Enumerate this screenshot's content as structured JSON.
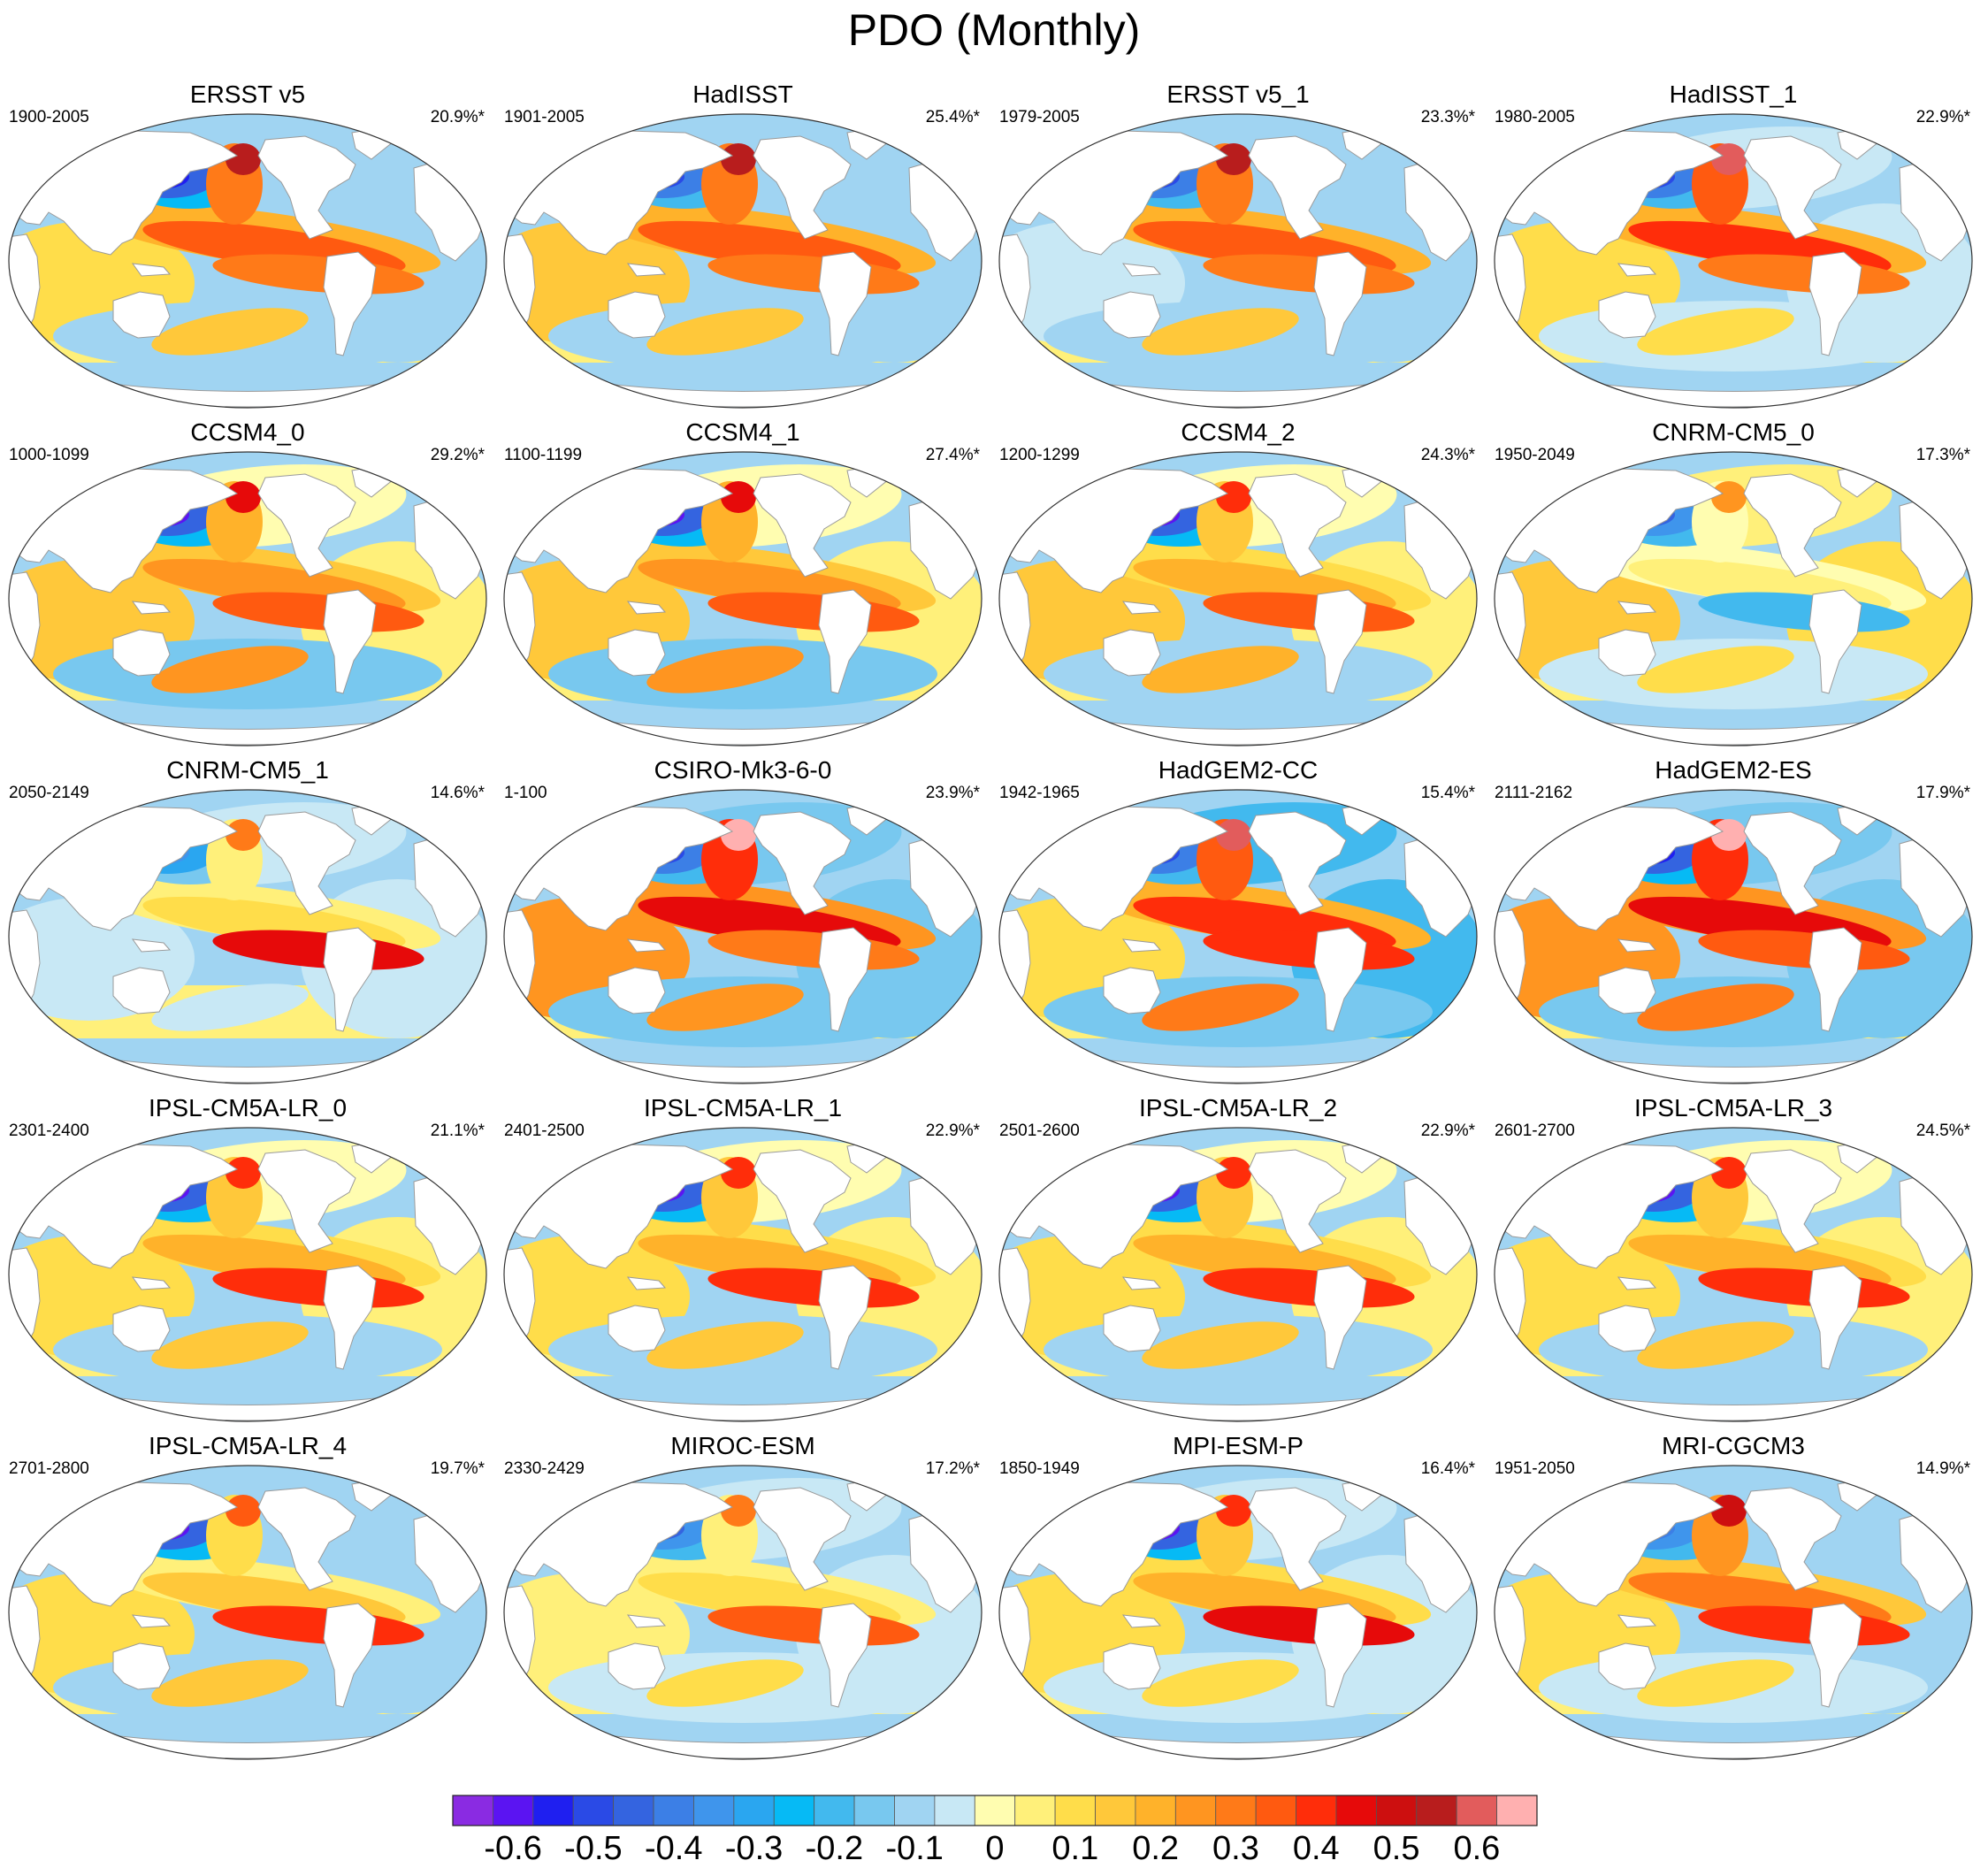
{
  "title": "PDO (Monthly)",
  "panels": [
    {
      "name": "ERSST v5",
      "period": "1900-2005",
      "percent": "20.9%*",
      "w": {
        "npac": -0.55,
        "tp": 0.35,
        "ep": 0.3,
        "sp": 0.15,
        "atl": -0.1,
        "ind": 0.1
      }
    },
    {
      "name": "HadISST",
      "period": "1901-2005",
      "percent": "25.4%*",
      "w": {
        "npac": -0.5,
        "tp": 0.35,
        "ep": 0.3,
        "sp": 0.15,
        "atl": -0.1,
        "ind": 0.15
      }
    },
    {
      "name": "ERSST v5_1",
      "period": "1979-2005",
      "percent": "23.3%*",
      "w": {
        "npac": -0.5,
        "tp": 0.35,
        "ep": 0.3,
        "sp": 0.15,
        "atl": -0.1,
        "ind": -0.05
      }
    },
    {
      "name": "HadISST_1",
      "period": "1980-2005",
      "percent": "22.9%*",
      "w": {
        "npac": -0.5,
        "tp": 0.4,
        "ep": 0.3,
        "sp": 0.1,
        "atl": -0.05,
        "ind": 0.1
      }
    },
    {
      "name": "CCSM4_0",
      "period": "1000-1099",
      "percent": "29.2%*",
      "w": {
        "npac": -0.6,
        "tp": 0.25,
        "ep": 0.35,
        "sp": 0.25,
        "atl": 0.05,
        "ind": 0.15
      }
    },
    {
      "name": "CCSM4_1",
      "period": "1100-1199",
      "percent": "27.4%*",
      "w": {
        "npac": -0.6,
        "tp": 0.25,
        "ep": 0.35,
        "sp": 0.25,
        "atl": 0.05,
        "ind": 0.15
      }
    },
    {
      "name": "CCSM4_2",
      "period": "1200-1299",
      "percent": "24.3%*",
      "w": {
        "npac": -0.6,
        "tp": 0.2,
        "ep": 0.35,
        "sp": 0.2,
        "atl": 0.05,
        "ind": 0.15
      }
    },
    {
      "name": "CNRM-CM5_0",
      "period": "1950-2049",
      "percent": "17.3%*",
      "w": {
        "npac": -0.45,
        "tp": 0.05,
        "ep": -0.2,
        "sp": 0.1,
        "atl": 0.1,
        "ind": 0.15
      }
    },
    {
      "name": "CNRM-CM5_1",
      "period": "2050-2149",
      "percent": "14.6%*",
      "w": {
        "npac": -0.35,
        "tp": 0.1,
        "ep": 0.45,
        "sp": -0.05,
        "atl": -0.05,
        "ind": -0.05
      }
    },
    {
      "name": "CSIRO-Mk3-6-0",
      "period": "1-100",
      "percent": "23.9%*",
      "w": {
        "npac": -0.5,
        "tp": 0.45,
        "ep": 0.3,
        "sp": 0.25,
        "atl": -0.15,
        "ind": 0.25
      }
    },
    {
      "name": "HadGEM2-CC",
      "period": "1942-1965",
      "percent": "15.4%*",
      "w": {
        "npac": -0.5,
        "tp": 0.4,
        "ep": 0.4,
        "sp": 0.3,
        "atl": -0.2,
        "ind": 0.1
      }
    },
    {
      "name": "HadGEM2-ES",
      "period": "2111-2162",
      "percent": "17.9%*",
      "w": {
        "npac": -0.55,
        "tp": 0.45,
        "ep": 0.35,
        "sp": 0.3,
        "atl": -0.15,
        "ind": 0.25
      }
    },
    {
      "name": "IPSL-CM5A-LR_0",
      "period": "2301-2400",
      "percent": "21.1%*",
      "w": {
        "npac": -0.6,
        "tp": 0.2,
        "ep": 0.4,
        "sp": 0.15,
        "atl": 0.05,
        "ind": 0.1
      }
    },
    {
      "name": "IPSL-CM5A-LR_1",
      "period": "2401-2500",
      "percent": "22.9%*",
      "w": {
        "npac": -0.6,
        "tp": 0.2,
        "ep": 0.4,
        "sp": 0.15,
        "atl": 0.05,
        "ind": 0.1
      }
    },
    {
      "name": "IPSL-CM5A-LR_2",
      "period": "2501-2600",
      "percent": "22.9%*",
      "w": {
        "npac": -0.6,
        "tp": 0.2,
        "ep": 0.4,
        "sp": 0.15,
        "atl": 0.05,
        "ind": 0.1
      }
    },
    {
      "name": "IPSL-CM5A-LR_3",
      "period": "2601-2700",
      "percent": "24.5%*",
      "w": {
        "npac": -0.6,
        "tp": 0.2,
        "ep": 0.4,
        "sp": 0.15,
        "atl": 0.05,
        "ind": 0.1
      }
    },
    {
      "name": "IPSL-CM5A-LR_4",
      "period": "2701-2800",
      "percent": "19.7%*",
      "w": {
        "npac": -0.6,
        "tp": 0.15,
        "ep": 0.4,
        "sp": 0.15,
        "atl": -0.1,
        "ind": 0.1
      }
    },
    {
      "name": "MIROC-ESM",
      "period": "2330-2429",
      "percent": "17.2%*",
      "w": {
        "npac": -0.45,
        "tp": 0.1,
        "ep": 0.35,
        "sp": 0.1,
        "atl": -0.05,
        "ind": 0.05
      }
    },
    {
      "name": "MPI-ESM-P",
      "period": "1850-1949",
      "percent": "16.4%*",
      "w": {
        "npac": -0.6,
        "tp": 0.2,
        "ep": 0.45,
        "sp": 0.1,
        "atl": -0.05,
        "ind": 0.1
      }
    },
    {
      "name": "MRI-CGCM3",
      "period": "1951-2050",
      "percent": "14.9%*",
      "w": {
        "npac": -0.4,
        "tp": 0.3,
        "ep": 0.4,
        "sp": 0.1,
        "atl": -0.1,
        "ind": 0.1
      }
    }
  ],
  "colorbar": {
    "levels": [
      -0.65,
      -0.6,
      -0.55,
      -0.5,
      -0.45,
      -0.4,
      -0.35,
      -0.3,
      -0.25,
      -0.2,
      -0.15,
      -0.1,
      -0.05,
      0,
      0.05,
      0.1,
      0.15,
      0.2,
      0.25,
      0.3,
      0.35,
      0.4,
      0.45,
      0.5,
      0.55,
      0.6,
      0.65,
      0.7
    ],
    "colors": [
      "#8a2be2",
      "#5b14f2",
      "#1f1ff0",
      "#2a4ae6",
      "#3464e0",
      "#3c7fe6",
      "#3f95ec",
      "#2aa6f0",
      "#06baf5",
      "#42b9ee",
      "#78c8ef",
      "#a0d4f2",
      "#c8e8f5",
      "#fffdb0",
      "#fff07a",
      "#ffdd4a",
      "#ffc83a",
      "#ffb22a",
      "#ff9520",
      "#ff7a18",
      "#ff5a10",
      "#ff2d0a",
      "#e60a0a",
      "#cd0f0f",
      "#b81d1d",
      "#e25c5c",
      "#ffb0b0"
    ],
    "labels": [
      "-0.6",
      "-0.5",
      "-0.4",
      "-0.3",
      "-0.2",
      "-0.1",
      "0",
      "0.1",
      "0.2",
      "0.3",
      "0.4",
      "0.5",
      "0.6"
    ]
  }
}
